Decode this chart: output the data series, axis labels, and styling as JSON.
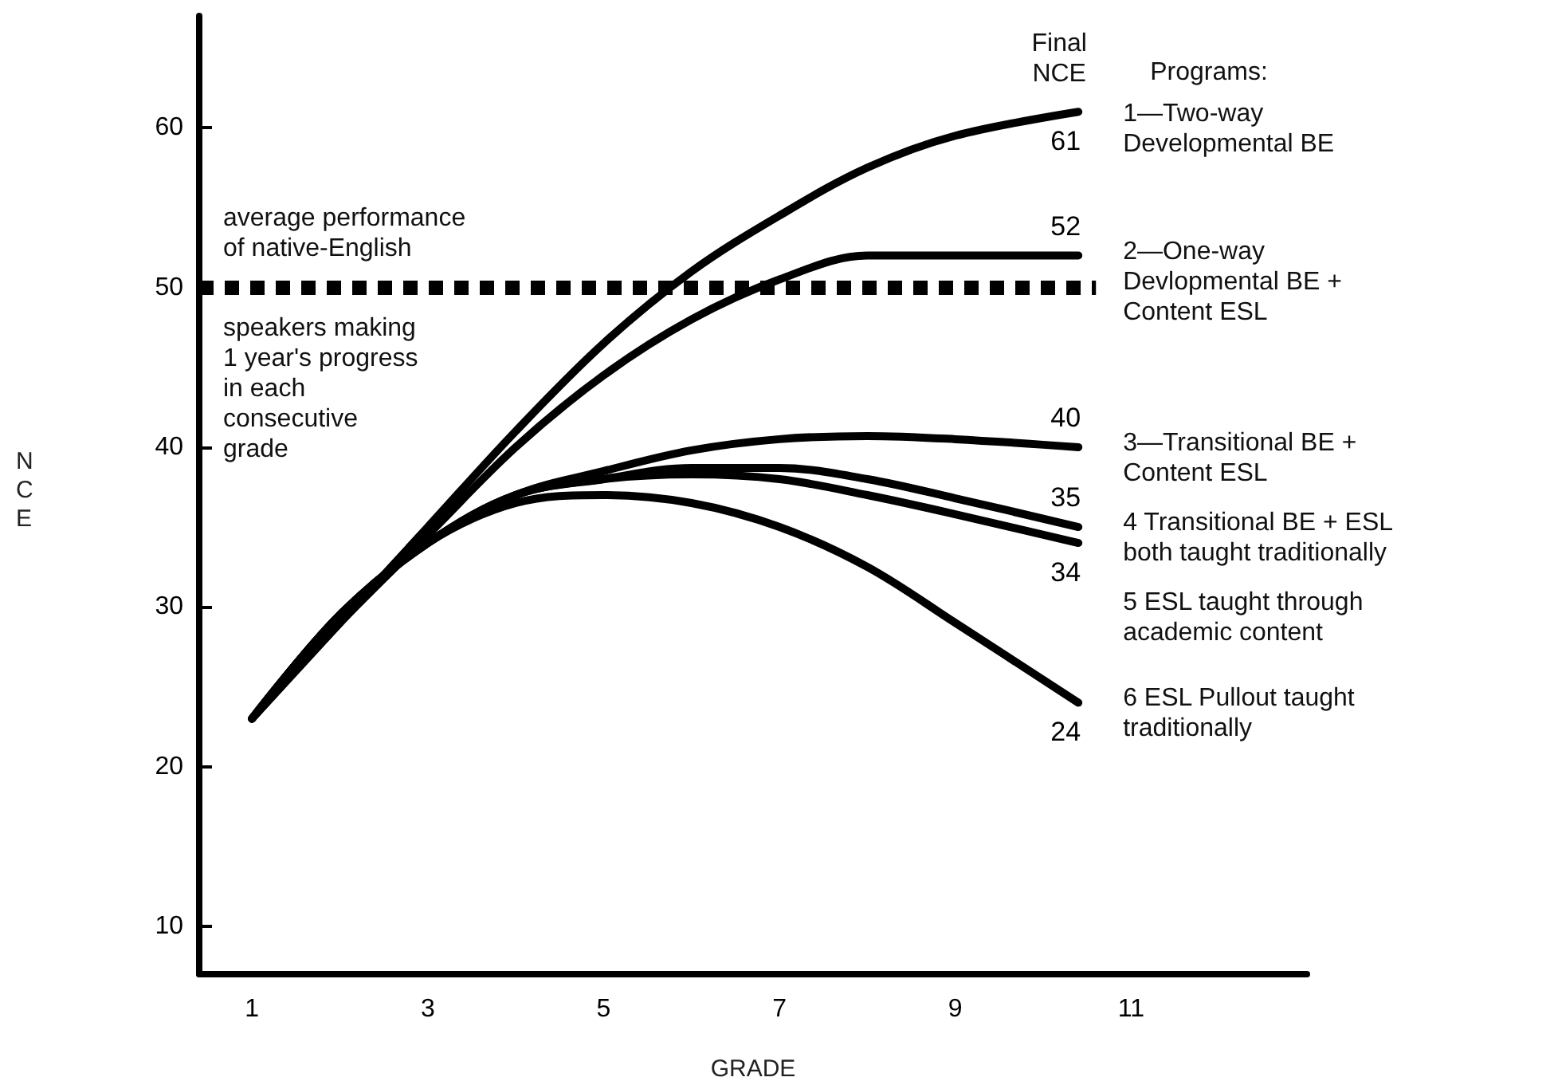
{
  "chart_data": {
    "type": "line",
    "xlabel": "GRADE",
    "ylabel": "NCE",
    "xlim": [
      0.4,
      13
    ],
    "xticks": [
      1,
      3,
      5,
      7,
      9,
      11
    ],
    "ylim": [
      7,
      67
    ],
    "yticks": [
      10,
      20,
      30,
      40,
      50,
      60
    ],
    "grid": false,
    "legend": false,
    "marker": "none",
    "line_style": "solid",
    "annotations": [
      "Final\nNCE",
      "Programs:",
      "average performance\nof native-English",
      "speakers making\n1 year's progress\nin each\nconsecutive\ngrade"
    ],
    "ref_lines": [
      {
        "axis": "y",
        "value": 50,
        "color": "#000000",
        "line_style": "dotted"
      }
    ],
    "series": [
      {
        "name": "1—Two-way Developmental BE",
        "color": "#000000",
        "x": [
          1,
          2,
          3,
          4,
          5,
          6,
          7,
          8,
          9,
          10.4
        ],
        "values": [
          23,
          29,
          35,
          41,
          46.5,
          51,
          54.5,
          57.5,
          59.5,
          61
        ],
        "value_labels": [
          null,
          null,
          null,
          null,
          null,
          null,
          null,
          null,
          null,
          "61"
        ]
      },
      {
        "name": "2—One-way Devlopmental BE + Content ESL",
        "color": "#000000",
        "x": [
          1,
          2,
          3,
          4,
          5,
          6,
          7,
          8,
          9,
          10.4
        ],
        "values": [
          23,
          29,
          34.5,
          40,
          44.5,
          48,
          50.5,
          52,
          52,
          52
        ],
        "value_labels": [
          null,
          null,
          null,
          null,
          null,
          null,
          null,
          null,
          null,
          "52"
        ]
      },
      {
        "name": "3—Transitional BE + Content ESL",
        "color": "#000000",
        "x": [
          1,
          2,
          3,
          4,
          5,
          6,
          7,
          8,
          9,
          10.4
        ],
        "values": [
          23,
          29.5,
          34,
          37,
          38.5,
          39.8,
          40.5,
          40.7,
          40.5,
          40
        ],
        "value_labels": [
          null,
          null,
          null,
          null,
          null,
          null,
          null,
          null,
          null,
          "40"
        ]
      },
      {
        "name": "4 Transitional BE + ESL both taught traditionally",
        "color": "#000000",
        "x": [
          1,
          2,
          3,
          4,
          5,
          6,
          7,
          8,
          9,
          10.4
        ],
        "values": [
          23,
          29.5,
          34,
          37,
          38,
          38.7,
          38.7,
          38,
          36.8,
          35
        ],
        "value_labels": [
          null,
          null,
          null,
          null,
          null,
          null,
          null,
          null,
          null,
          "35"
        ]
      },
      {
        "name": "5 ESL taught through academic content",
        "color": "#000000",
        "x": [
          1,
          2,
          3,
          4,
          5,
          6,
          7,
          8,
          9,
          10.4
        ],
        "values": [
          23,
          29.5,
          34,
          37,
          38,
          38.3,
          38,
          37,
          35.8,
          34
        ],
        "value_labels": [
          null,
          null,
          null,
          null,
          null,
          null,
          null,
          null,
          null,
          "34"
        ]
      },
      {
        "name": "6 ESL Pullout taught traditionally",
        "color": "#000000",
        "x": [
          1,
          2,
          3,
          4,
          5,
          6,
          7,
          8,
          9,
          10.4
        ],
        "values": [
          23,
          29.5,
          34,
          36.5,
          37,
          36.5,
          35,
          32.5,
          29,
          24
        ],
        "value_labels": [
          null,
          null,
          null,
          null,
          null,
          null,
          null,
          null,
          null,
          "24"
        ]
      }
    ]
  }
}
